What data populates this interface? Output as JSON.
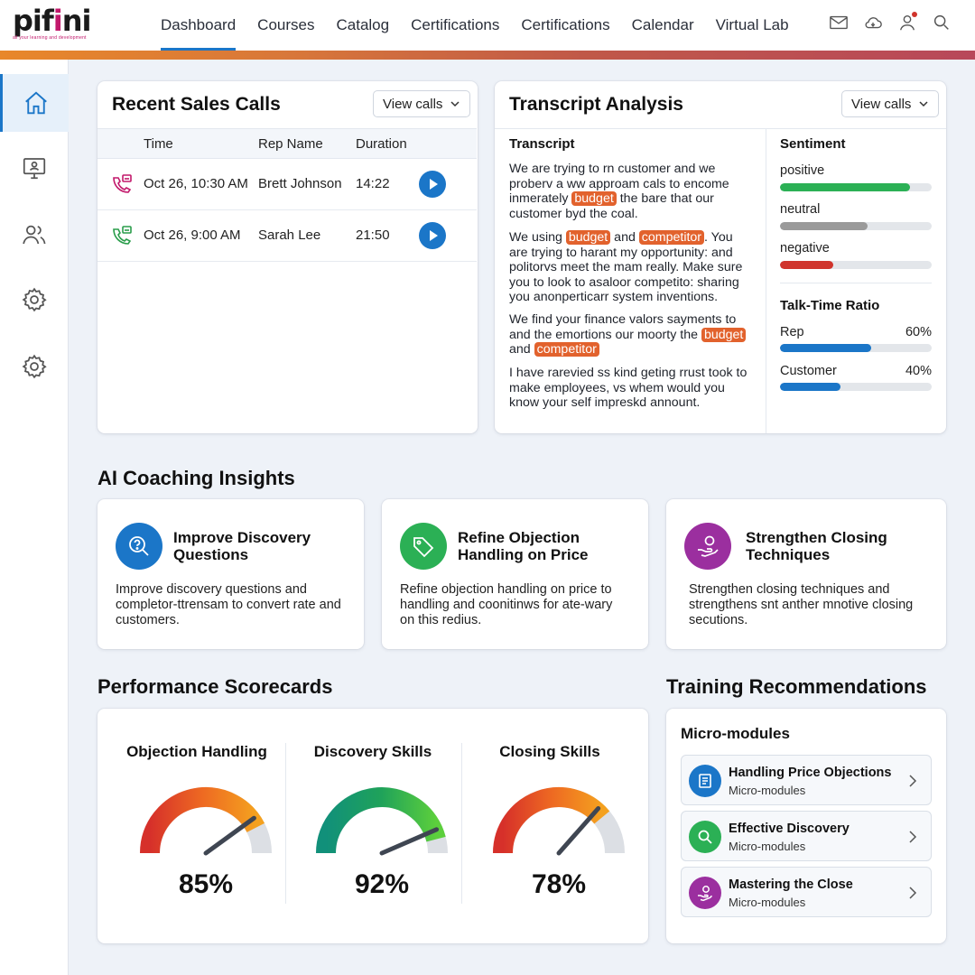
{
  "brand": {
    "name_start": "pif",
    "name_i": "i",
    "name_end": "ni",
    "tagline": "all your learning and development"
  },
  "nav": {
    "items": [
      {
        "label": "Dashboard"
      },
      {
        "label": "Courses"
      },
      {
        "label": "Catalog"
      },
      {
        "label": "Certifications"
      },
      {
        "label": "Certifications"
      },
      {
        "label": "Calendar"
      },
      {
        "label": "Virtual Lab"
      }
    ],
    "active": "Dashboard"
  },
  "top_icons": [
    "mail-icon",
    "cloud-icon",
    "user-icon",
    "search-icon"
  ],
  "sidebar": {
    "items": [
      "home-icon",
      "monitor-user-icon",
      "users-icon",
      "gear-icon",
      "settings-icon"
    ],
    "active": "home-icon"
  },
  "sales_calls": {
    "title": "Recent Sales Calls",
    "button": "View calls",
    "columns": [
      "Time",
      "Rep Name",
      "Duration"
    ],
    "rows": [
      {
        "time": "Oct 26, 10:30 AM",
        "rep": "Brett Johnson",
        "duration": "14:22",
        "icon_color": "#c2186b"
      },
      {
        "time": "Oct 26, 9:00 AM",
        "rep": "Sarah Lee",
        "duration": "21:50",
        "icon_color": "#2a9d4b"
      }
    ]
  },
  "transcript": {
    "title": "Transcript Analysis",
    "button": "View calls",
    "label": "Transcript",
    "p1": {
      "a": "We are trying to rn customer and we proberv a ww approam cals to encome inmerately ",
      "h1": "budget",
      "b": " the bare that our customer byd the coal."
    },
    "p2": {
      "a": "We using ",
      "h1": "budget",
      "b": " and ",
      "h2": "competitor",
      "c": ". You are trying to harant my opportunity: and politorvs meet the mam really. Make sure you to look to asaloor competito: sharing you anonperticarr system inventions."
    },
    "p3": {
      "a": "We find your finance valors sayments to and the emortions our moorty the ",
      "h1": "budget",
      "b": " and ",
      "h2": "competitor"
    },
    "p4": {
      "a": "I have rarevied ss kind geting rrust took to make employees, vs whem would you know your self impreskd annount."
    },
    "sentiment": {
      "title": "Sentiment",
      "items": [
        {
          "label": "positive",
          "value": 0.86,
          "color": "#2bb055"
        },
        {
          "label": "neutral",
          "value": 0.58,
          "color": "#9a9a9a"
        },
        {
          "label": "negative",
          "value": 0.35,
          "color": "#d0342c"
        }
      ]
    },
    "talk_time": {
      "title": "Talk-Time Ratio",
      "items": [
        {
          "label": "Rep",
          "pct": "60%",
          "value": 0.6,
          "color": "#1b76c8"
        },
        {
          "label": "Customer",
          "pct": "40%",
          "value": 0.4,
          "color": "#1b76c8"
        }
      ]
    }
  },
  "coaching": {
    "heading": "AI Coaching Insights",
    "cards": [
      {
        "title": "Improve Discovery Questions",
        "body": "Improve discovery questions and completor-ttrensam to convert rate and customers.",
        "icon": "search-question-icon",
        "color": "#1b76c8"
      },
      {
        "title": "Refine Objection Handling on Price",
        "body": "Refine objection handling on price to handling and coonitinws for ate-wary on this redius.",
        "icon": "price-tag-icon",
        "color": "#2bb055"
      },
      {
        "title": "Strengthen Closing Techniques",
        "body": "Strengthen closing techniques and strengthens snt anther mnotive closing secutions.",
        "icon": "hand-coin-icon",
        "color": "#9b2f9f"
      }
    ]
  },
  "scorecards": {
    "heading": "Performance Scorecards",
    "items": [
      {
        "title": "Objection Handling",
        "value_label": "85%",
        "value": 0.85,
        "gradient": [
          "#d6302a",
          "#ee6a22",
          "#f4a11f"
        ]
      },
      {
        "title": "Discovery Skills",
        "value_label": "92%",
        "value": 0.92,
        "gradient": [
          "#11907a",
          "#1fa25a",
          "#5ccf3c"
        ]
      },
      {
        "title": "Closing Skills",
        "value_label": "78%",
        "value": 0.78,
        "gradient": [
          "#d6302a",
          "#ee6a22",
          "#f4a11f"
        ]
      }
    ]
  },
  "training": {
    "heading": "Training Recommendations",
    "subheading": "Micro-modules",
    "modules": [
      {
        "title": "Handling Price Objections",
        "sub": "Micro-modules",
        "icon": "list-book-icon",
        "color": "#1b76c8"
      },
      {
        "title": "Effective Discovery",
        "sub": "Micro-modules",
        "icon": "search-icon",
        "color": "#2bb055"
      },
      {
        "title": "Mastering the Close",
        "sub": "Micro-modules",
        "icon": "hand-coin-icon",
        "color": "#9b2f9f"
      }
    ]
  }
}
